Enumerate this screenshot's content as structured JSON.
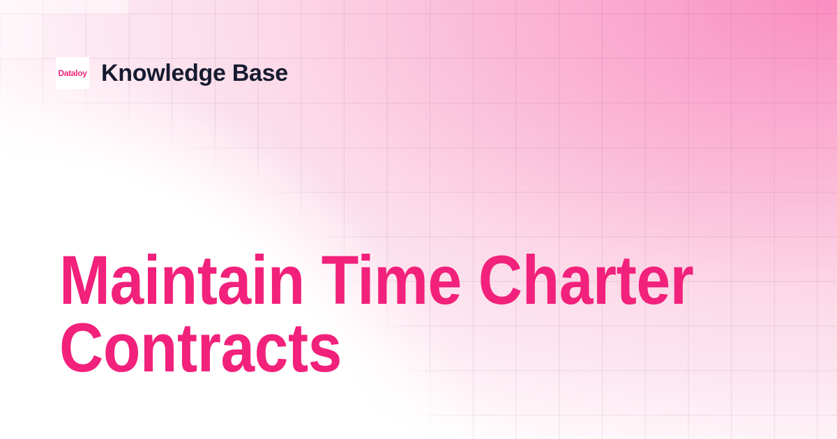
{
  "brand": {
    "logo_text": "Dataloy",
    "site_name": "Knowledge Base"
  },
  "hero": {
    "title": "Maintain Time Charter Contracts"
  },
  "background": {
    "pattern": "square-grid",
    "grid_cell_px": "62x64"
  },
  "colors": {
    "brand_pink": "#F0257C",
    "title_pink": "#F2217B",
    "heading_dark": "#161B30",
    "bg_pink_strong": "#FA8EC0",
    "bg_white": "#FFFFFF",
    "grid_line": "rgba(90,50,80,0.11)"
  }
}
